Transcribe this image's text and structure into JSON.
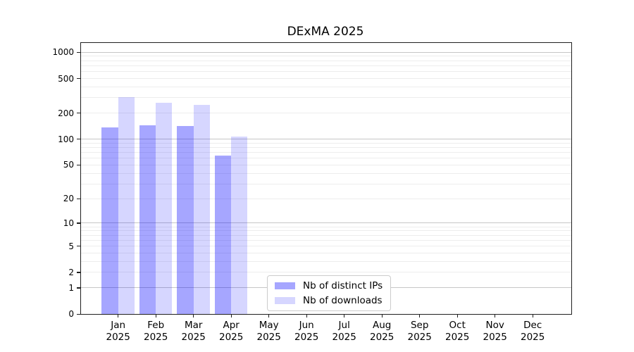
{
  "chart_data": {
    "type": "bar",
    "title": "DExMA 2025",
    "categories": [
      {
        "month": "Jan",
        "year": "2025"
      },
      {
        "month": "Feb",
        "year": "2025"
      },
      {
        "month": "Mar",
        "year": "2025"
      },
      {
        "month": "Apr",
        "year": "2025"
      },
      {
        "month": "May",
        "year": "2025"
      },
      {
        "month": "Jun",
        "year": "2025"
      },
      {
        "month": "Jul",
        "year": "2025"
      },
      {
        "month": "Aug",
        "year": "2025"
      },
      {
        "month": "Sep",
        "year": "2025"
      },
      {
        "month": "Oct",
        "year": "2025"
      },
      {
        "month": "Nov",
        "year": "2025"
      },
      {
        "month": "Dec",
        "year": "2025"
      }
    ],
    "series": [
      {
        "name": "Nb of distinct IPs",
        "color": "#0000ff59",
        "values": [
          138,
          145,
          143,
          65,
          0,
          0,
          0,
          0,
          0,
          0,
          0,
          0
        ]
      },
      {
        "name": "Nb of downloads",
        "color": "#0000ff29",
        "values": [
          305,
          265,
          247,
          107,
          0,
          0,
          0,
          0,
          0,
          0,
          0,
          0
        ]
      }
    ],
    "yscale": "log1p",
    "yticks": [
      0,
      1,
      2,
      5,
      10,
      20,
      50,
      100,
      200,
      500,
      1000
    ],
    "ylim": [
      0,
      1280
    ],
    "grid": {
      "major_values": [
        1,
        10,
        100,
        1000
      ],
      "minor_decades": [
        1,
        10,
        100
      ],
      "major_color": "#c6c6c6",
      "minor_color": "#ededed"
    },
    "legend_position": "lower-center",
    "axis_color": "#1f1f1f",
    "bar_group_width_fraction": 0.88
  }
}
